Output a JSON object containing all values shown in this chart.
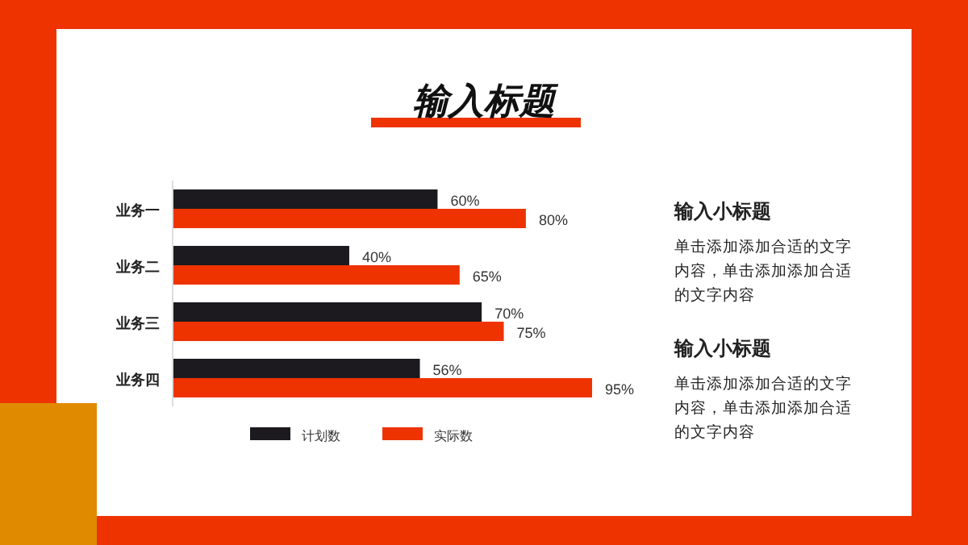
{
  "chart_data": {
    "type": "bar",
    "orientation": "horizontal",
    "title": "输入标题",
    "categories": [
      "业务一",
      "业务二",
      "业务三",
      "业务四"
    ],
    "series": [
      {
        "name": "计划数",
        "color": "#1c1a1f",
        "values": [
          60,
          40,
          70,
          56
        ],
        "value_labels": [
          "60%",
          "40%",
          "70%",
          "56%"
        ]
      },
      {
        "name": "实际数",
        "color": "#ee3300",
        "values": [
          80,
          65,
          75,
          95
        ],
        "value_labels": [
          "80%",
          "65%",
          "75%",
          "95%"
        ]
      }
    ],
    "legend": "bottom",
    "annotations": [
      "输入小标题",
      "单击添加添加合适的文字内容，单击添加添加合适的文字内容",
      "输入小标题",
      "单击添加添加合适的文字内容，单击添加添加合适的文字内容"
    ]
  }
}
